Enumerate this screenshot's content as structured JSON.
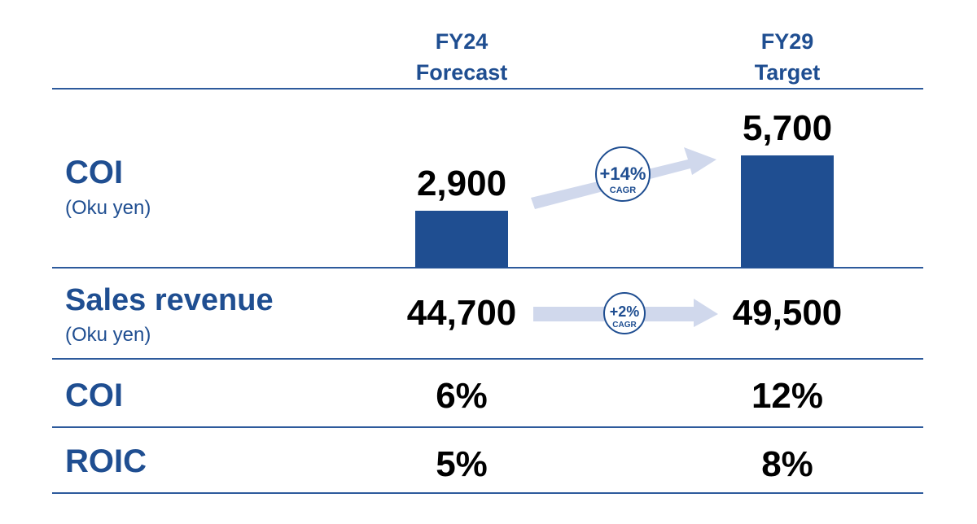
{
  "columns": [
    {
      "line1": "FY24",
      "line2": "Forecast"
    },
    {
      "line1": "FY29",
      "line2": "Target"
    }
  ],
  "rows": [
    {
      "label": "COI",
      "sub": "(Oku yen)",
      "values": [
        "2,900",
        "5,700"
      ],
      "growth": {
        "value": "+14%",
        "label": "CAGR"
      }
    },
    {
      "label": "Sales revenue",
      "sub": "(Oku yen)",
      "values": [
        "44,700",
        "49,500"
      ],
      "growth": {
        "value": "+2%",
        "label": "CAGR"
      }
    },
    {
      "label": "COI",
      "values": [
        "6%",
        "12%"
      ]
    },
    {
      "label": "ROIC",
      "values": [
        "5%",
        "8%"
      ]
    }
  ],
  "colors": {
    "primary": "#1f4e91",
    "arrow": "#d0d8ec"
  },
  "chart_data": {
    "type": "bar",
    "categories": [
      "FY24 Forecast",
      "FY29 Target"
    ],
    "values": [
      2900,
      5700
    ],
    "ylabel": "COI (Oku yen)"
  }
}
